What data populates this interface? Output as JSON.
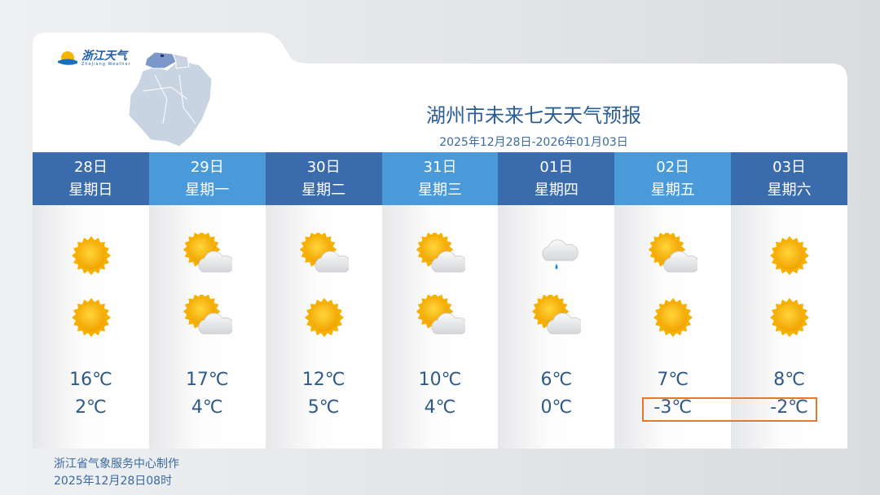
{
  "logo": {
    "text": "浙江天气",
    "sub": "ZheJiang Weather"
  },
  "title": "湖州市未来七天天气预报",
  "subtitle": "2025年12月28日-2026年01月03日",
  "days": [
    {
      "date": "28日",
      "weekday": "星期日",
      "icon_day": "sunny",
      "icon_night": "sunny",
      "high": "16℃",
      "low": "2℃"
    },
    {
      "date": "29日",
      "weekday": "星期一",
      "icon_day": "partly-cloudy",
      "icon_night": "partly-cloudy",
      "high": "17℃",
      "low": "4℃"
    },
    {
      "date": "30日",
      "weekday": "星期二",
      "icon_day": "partly-cloudy",
      "icon_night": "sunny",
      "high": "12℃",
      "low": "5℃"
    },
    {
      "date": "31日",
      "weekday": "星期三",
      "icon_day": "partly-cloudy",
      "icon_night": "partly-cloudy",
      "high": "10℃",
      "low": "4℃"
    },
    {
      "date": "01日",
      "weekday": "星期四",
      "icon_day": "light-rain",
      "icon_night": "partly-cloudy",
      "high": "6℃",
      "low": "0℃"
    },
    {
      "date": "02日",
      "weekday": "星期五",
      "icon_day": "partly-cloudy",
      "icon_night": "sunny",
      "high": "7℃",
      "low": "-3℃"
    },
    {
      "date": "03日",
      "weekday": "星期六",
      "icon_day": "sunny",
      "icon_night": "sunny",
      "high": "8℃",
      "low": "-2℃"
    }
  ],
  "colors": {
    "header_dark": "#3a6cad",
    "header_light": "#4a9ad9",
    "highlight": "#e07a30",
    "text": "#2e5a8a"
  },
  "footer": {
    "maker": "浙江省气象服务中心制作",
    "time": "2025年12月28日08时"
  }
}
